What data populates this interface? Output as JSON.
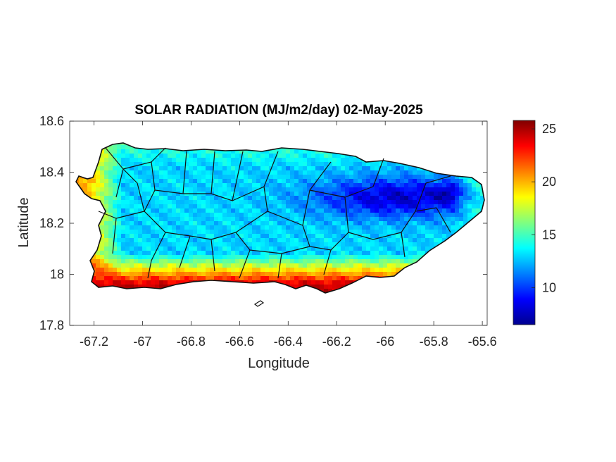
{
  "chart_data": {
    "type": "heatmap",
    "title": "SOLAR RADIATION (MJ/m2/day) 02-May-2025",
    "xlabel": "Longitude",
    "ylabel": "Latitude",
    "xlim": [
      -67.3,
      -65.58
    ],
    "ylim": [
      17.8,
      18.6
    ],
    "xticks": [
      -67.2,
      -67,
      -66.8,
      -66.6,
      -66.4,
      -66.2,
      -66,
      -65.8,
      -65.6
    ],
    "xtick_labels": [
      "-67.2",
      "-67",
      "-66.8",
      "-66.6",
      "-66.4",
      "-66.2",
      "-66",
      "-65.8",
      "-65.6"
    ],
    "yticks": [
      17.8,
      18,
      18.2,
      18.4,
      18.6
    ],
    "ytick_labels": [
      "17.8",
      "18",
      "18.2",
      "18.4",
      "18.6"
    ],
    "grid": false,
    "colormap": "jet",
    "colorbar": {
      "range": [
        6.5,
        25.8
      ],
      "ticks": [
        10,
        15,
        20,
        25
      ],
      "tick_labels": [
        "10",
        "15",
        "20",
        "25"
      ]
    },
    "pattern": {
      "south_coast_value": 24.5,
      "west_coast_value": 20.5,
      "interior_value": 13,
      "northeast_min_value": 8,
      "north_coast_value": 15.5
    }
  }
}
